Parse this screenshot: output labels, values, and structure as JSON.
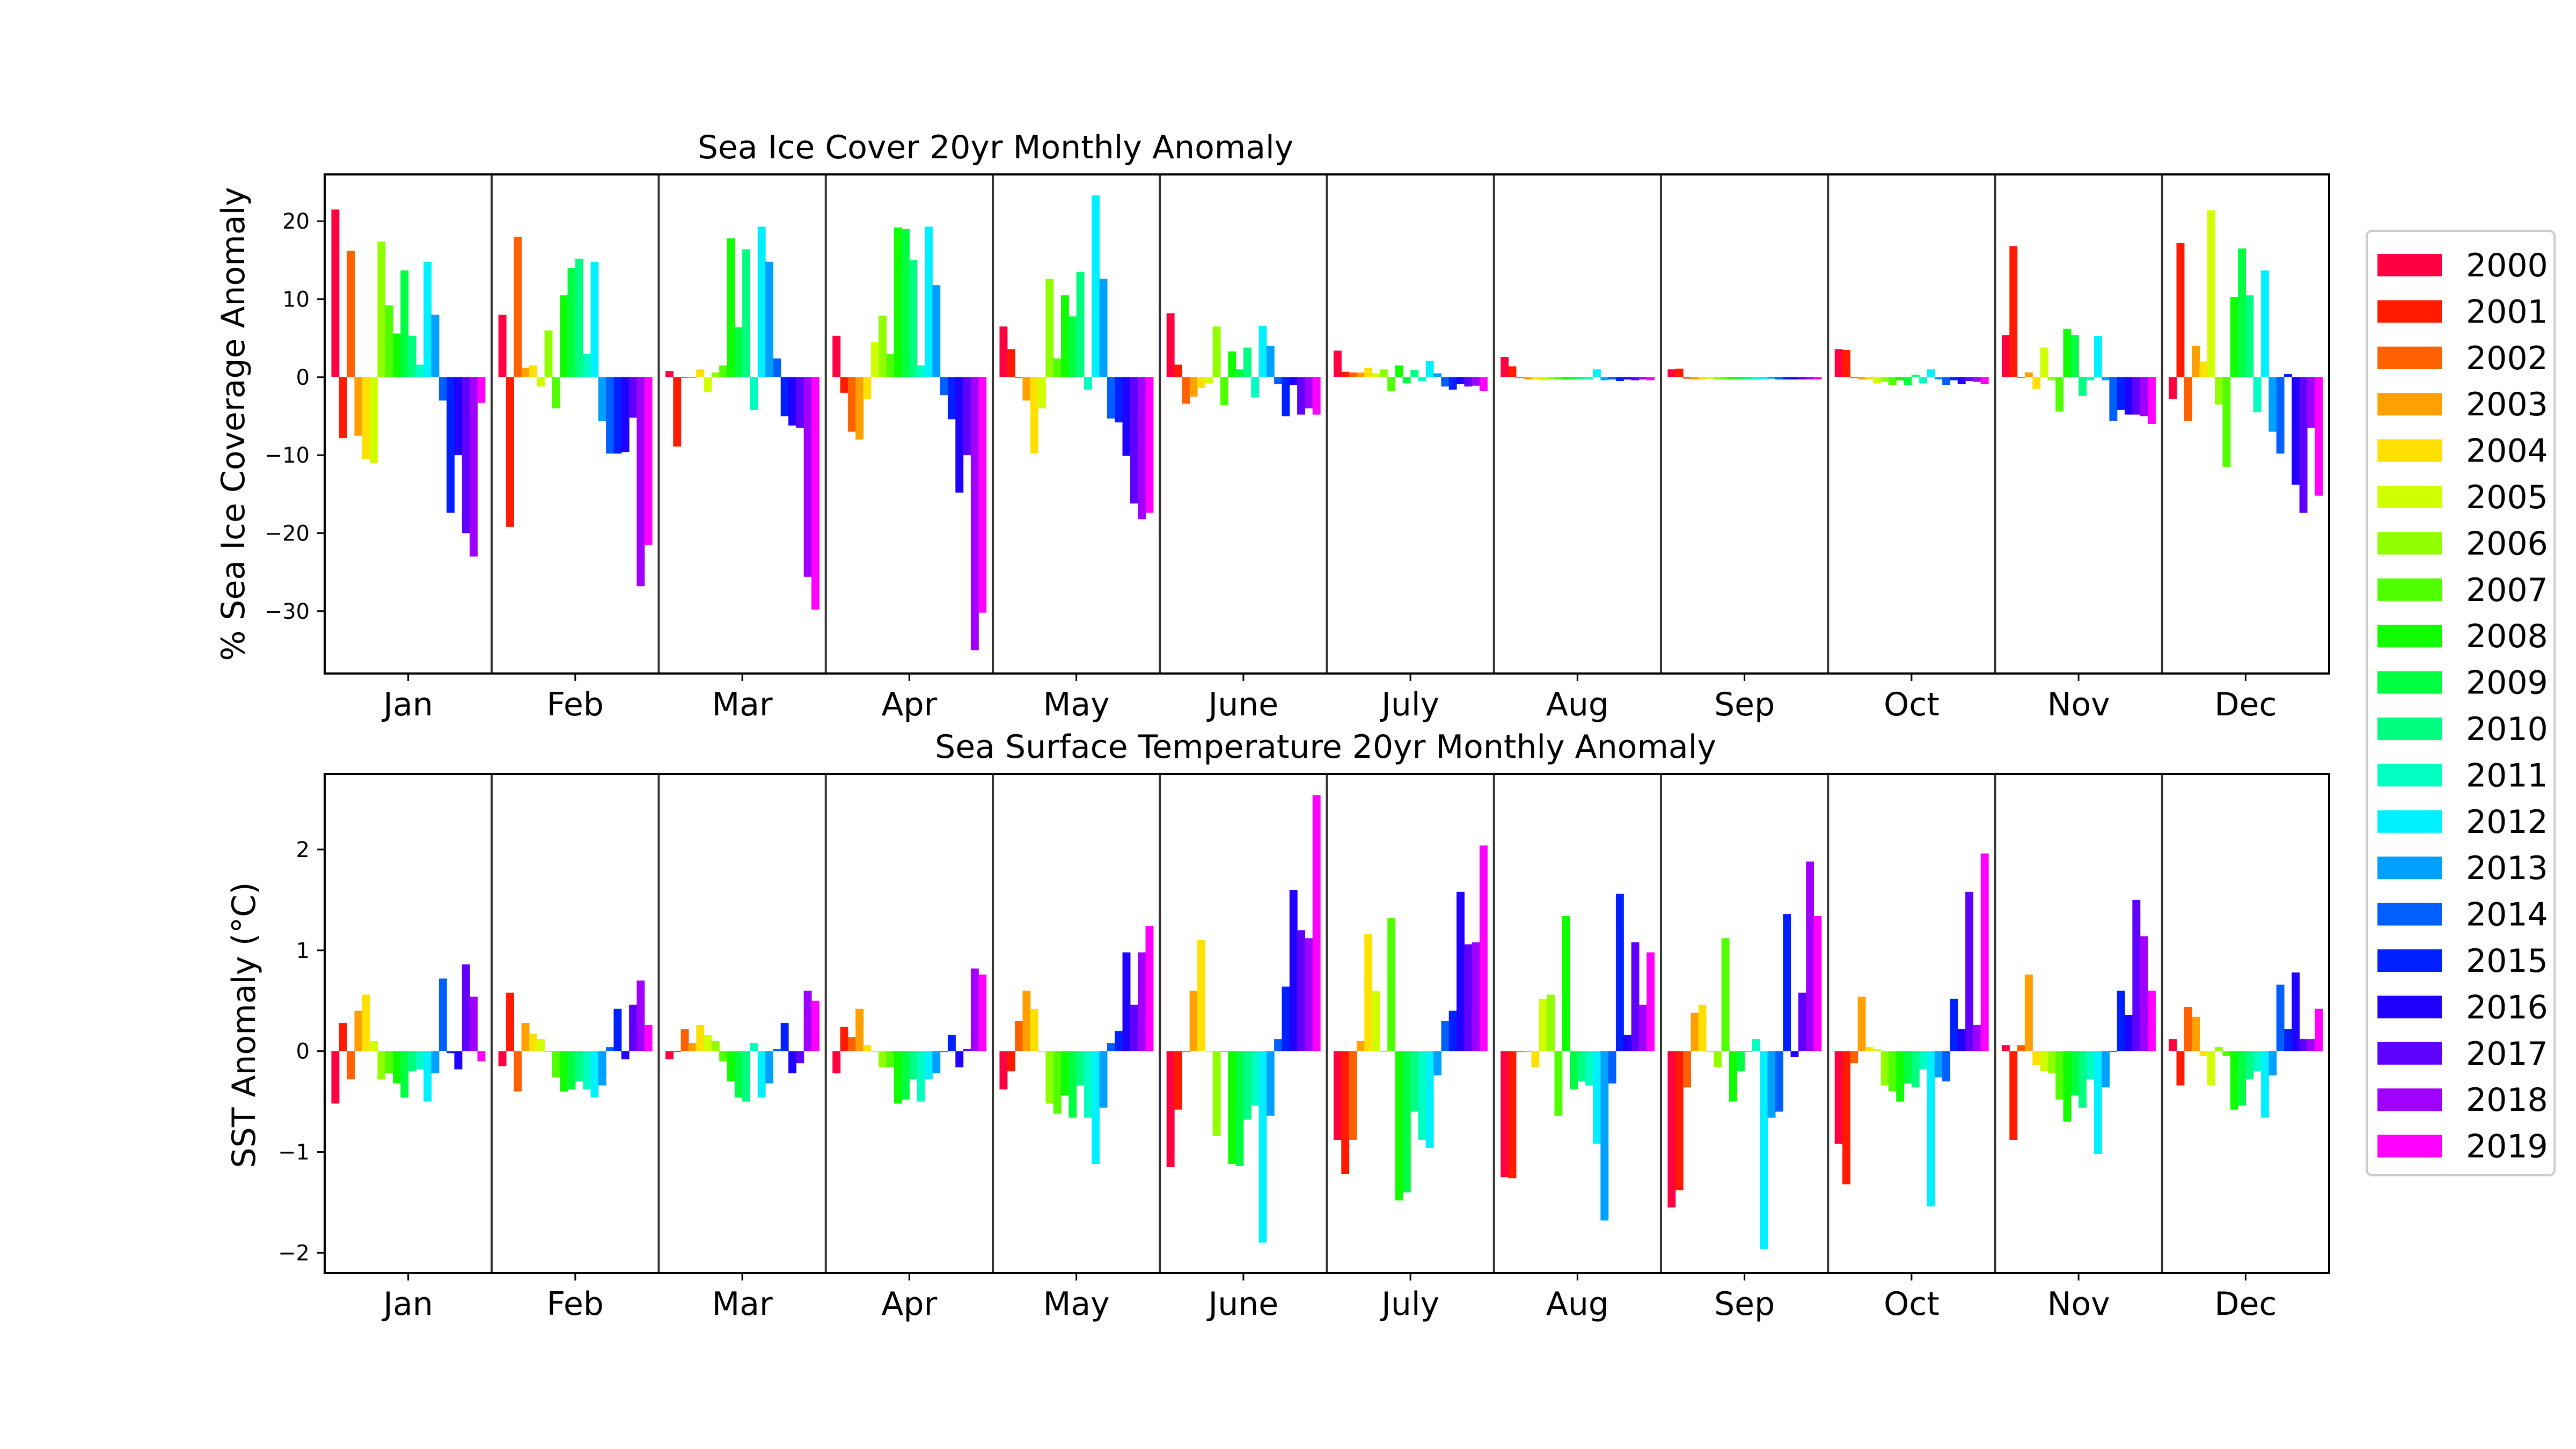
{
  "chart_data": [
    {
      "type": "bar",
      "title": "Sea Ice Cover 20yr Monthly Anomaly",
      "xlabel": "",
      "ylabel": "% Sea Ice Coverage Anomaly",
      "ylim": [
        -38,
        26
      ],
      "yticks": [
        20,
        10,
        0,
        -10,
        -20,
        -30
      ],
      "ytick_labels": [
        "20",
        "10",
        "0",
        "−10",
        "−20",
        "−30"
      ],
      "categories": [
        "Jan",
        "Feb",
        "Mar",
        "Apr",
        "May",
        "June",
        "July",
        "Aug",
        "Sep",
        "Oct",
        "Nov",
        "Dec"
      ],
      "series": [
        {
          "name": "2000",
          "color": "#ff0040",
          "values": [
            21.5,
            8.0,
            0.8,
            5.3,
            6.5,
            8.2,
            3.4,
            2.6,
            1.0,
            3.6,
            5.4,
            -2.8
          ]
        },
        {
          "name": "2001",
          "color": "#ff1a00",
          "values": [
            -7.8,
            -19.2,
            -8.9,
            -2.0,
            3.6,
            1.6,
            0.7,
            1.4,
            1.1,
            3.5,
            16.8,
            17.2
          ]
        },
        {
          "name": "2002",
          "color": "#ff6000",
          "values": [
            16.2,
            18.0,
            0.0,
            -7.0,
            0.0,
            -3.4,
            0.6,
            0.0,
            -0.2,
            0.0,
            0.0,
            -5.6
          ]
        },
        {
          "name": "2003",
          "color": "#ffa000",
          "values": [
            -7.5,
            1.2,
            0.0,
            -8.0,
            -3.0,
            -2.5,
            0.6,
            -0.3,
            -0.3,
            -0.3,
            0.6,
            4.0
          ]
        },
        {
          "name": "2004",
          "color": "#ffe000",
          "values": [
            -10.5,
            1.5,
            1.0,
            -2.8,
            -9.8,
            -1.4,
            1.2,
            -0.3,
            -0.3,
            -0.3,
            -1.5,
            2.0
          ]
        },
        {
          "name": "2005",
          "color": "#d0ff00",
          "values": [
            -11.0,
            -1.2,
            -1.9,
            4.5,
            -4.0,
            -0.8,
            0.5,
            -0.4,
            -0.2,
            -0.8,
            3.8,
            21.4
          ]
        },
        {
          "name": "2006",
          "color": "#90ff00",
          "values": [
            17.4,
            6.0,
            0.6,
            7.9,
            12.6,
            6.5,
            1.0,
            -0.3,
            -0.3,
            -0.6,
            -0.4,
            -3.5
          ]
        },
        {
          "name": "2007",
          "color": "#50ff00",
          "values": [
            9.2,
            -4.0,
            1.5,
            3.0,
            2.4,
            -3.6,
            -1.8,
            -0.3,
            -0.3,
            -1.0,
            -4.4,
            -11.5
          ]
        },
        {
          "name": "2008",
          "color": "#10ff00",
          "values": [
            5.6,
            10.5,
            17.8,
            19.2,
            10.5,
            3.3,
            1.5,
            -0.3,
            -0.3,
            -0.4,
            6.2,
            10.3
          ]
        },
        {
          "name": "2009",
          "color": "#00ff40",
          "values": [
            13.7,
            14.0,
            6.4,
            19.0,
            7.8,
            1.0,
            -0.8,
            -0.3,
            -0.3,
            -1.0,
            5.4,
            16.5
          ]
        },
        {
          "name": "2010",
          "color": "#00ff80",
          "values": [
            5.3,
            15.2,
            16.4,
            15.0,
            13.5,
            3.8,
            0.9,
            -0.3,
            -0.3,
            0.3,
            -2.4,
            10.5
          ]
        },
        {
          "name": "2011",
          "color": "#00ffc0",
          "values": [
            1.6,
            3.0,
            -4.2,
            1.5,
            -1.6,
            -2.6,
            -0.5,
            -0.3,
            -0.3,
            -0.8,
            -0.4,
            -4.5
          ]
        },
        {
          "name": "2012",
          "color": "#00f0ff",
          "values": [
            14.8,
            14.8,
            19.3,
            19.3,
            23.3,
            6.6,
            2.1,
            1.0,
            -0.3,
            1.0,
            5.3,
            13.7
          ]
        },
        {
          "name": "2013",
          "color": "#00a0ff",
          "values": [
            8.0,
            -5.6,
            14.8,
            11.8,
            12.6,
            4.0,
            0.5,
            -0.4,
            -0.2,
            -0.3,
            -0.4,
            -7.0
          ]
        },
        {
          "name": "2014",
          "color": "#0060ff",
          "values": [
            -3.0,
            -9.8,
            2.4,
            -2.3,
            -5.3,
            -0.9,
            -1.2,
            -0.3,
            -0.3,
            -1.0,
            -5.6,
            -9.8
          ]
        },
        {
          "name": "2015",
          "color": "#0020ff",
          "values": [
            -17.4,
            -9.8,
            -5.0,
            -5.4,
            -5.8,
            -5.0,
            -1.6,
            -0.5,
            -0.3,
            -0.4,
            -4.2,
            0.4
          ]
        },
        {
          "name": "2016",
          "color": "#2000ff",
          "values": [
            -10.0,
            -9.6,
            -6.2,
            -14.8,
            -10.1,
            -1.0,
            -0.9,
            -0.3,
            -0.3,
            -0.9,
            -4.8,
            -13.8
          ]
        },
        {
          "name": "2017",
          "color": "#6000ff",
          "values": [
            -20.0,
            -5.2,
            -6.5,
            -10.0,
            -16.2,
            -4.8,
            -1.2,
            -0.4,
            -0.3,
            -0.5,
            -4.8,
            -17.4
          ]
        },
        {
          "name": "2018",
          "color": "#a000ff",
          "values": [
            -23.0,
            -26.8,
            -25.6,
            -35.0,
            -18.2,
            -4.0,
            -1.1,
            -0.3,
            -0.3,
            -0.6,
            -5.0,
            -6.5
          ]
        },
        {
          "name": "2019",
          "color": "#ff00ff",
          "values": [
            -3.3,
            -21.5,
            -29.8,
            -30.2,
            -17.4,
            -4.8,
            -1.8,
            -0.4,
            -0.3,
            -0.9,
            -6.0,
            -15.2
          ]
        }
      ]
    },
    {
      "type": "bar",
      "title": "Sea Surface Temperature 20yr Monthly Anomaly",
      "xlabel": "",
      "ylabel": "SST Anomaly (°C)",
      "ylim": [
        -2.2,
        2.75
      ],
      "yticks": [
        2,
        1,
        0,
        -1,
        -2
      ],
      "ytick_labels": [
        "2",
        "1",
        "0",
        "−1",
        "−2"
      ],
      "categories": [
        "Jan",
        "Feb",
        "Mar",
        "Apr",
        "May",
        "June",
        "July",
        "Aug",
        "Sep",
        "Oct",
        "Nov",
        "Dec"
      ],
      "series": [
        {
          "name": "2000",
          "color": "#ff0040",
          "values": [
            -0.52,
            -0.15,
            -0.08,
            -0.22,
            -0.38,
            -1.15,
            -0.88,
            -1.25,
            -1.55,
            -0.92,
            0.06,
            0.12
          ]
        },
        {
          "name": "2001",
          "color": "#ff1a00",
          "values": [
            0.28,
            0.58,
            0.0,
            0.24,
            -0.2,
            -0.58,
            -1.22,
            -1.26,
            -1.38,
            -1.32,
            -0.88,
            -0.34
          ]
        },
        {
          "name": "2002",
          "color": "#ff6000",
          "values": [
            -0.28,
            -0.4,
            0.22,
            0.14,
            0.3,
            0.0,
            -0.88,
            0.0,
            -0.36,
            -0.12,
            0.06,
            0.44
          ]
        },
        {
          "name": "2003",
          "color": "#ffa000",
          "values": [
            0.4,
            0.28,
            0.08,
            0.42,
            0.6,
            0.6,
            0.1,
            0.0,
            0.38,
            0.54,
            0.76,
            0.34
          ]
        },
        {
          "name": "2004",
          "color": "#ffe000",
          "values": [
            0.56,
            0.17,
            0.26,
            0.06,
            0.42,
            1.1,
            1.16,
            -0.16,
            0.46,
            0.04,
            -0.14,
            -0.05
          ]
        },
        {
          "name": "2005",
          "color": "#d0ff00",
          "values": [
            0.1,
            0.12,
            0.16,
            0.0,
            0.0,
            0.0,
            0.6,
            0.52,
            0.0,
            0.02,
            -0.2,
            -0.34
          ]
        },
        {
          "name": "2006",
          "color": "#90ff00",
          "values": [
            -0.28,
            0.0,
            0.1,
            -0.16,
            -0.52,
            -0.84,
            0.0,
            0.56,
            -0.16,
            -0.34,
            -0.22,
            0.04
          ]
        },
        {
          "name": "2007",
          "color": "#50ff00",
          "values": [
            -0.22,
            -0.26,
            -0.1,
            -0.16,
            -0.62,
            0.0,
            1.32,
            -0.64,
            1.12,
            -0.4,
            -0.48,
            -0.05
          ]
        },
        {
          "name": "2008",
          "color": "#10ff00",
          "values": [
            -0.32,
            -0.4,
            -0.3,
            -0.52,
            -0.44,
            -1.12,
            -1.48,
            1.34,
            -0.5,
            -0.5,
            -0.7,
            -0.58
          ]
        },
        {
          "name": "2009",
          "color": "#00ff40",
          "values": [
            -0.46,
            -0.38,
            -0.46,
            -0.48,
            -0.66,
            -1.14,
            -1.4,
            -0.38,
            -0.2,
            -0.32,
            -0.44,
            -0.54
          ]
        },
        {
          "name": "2010",
          "color": "#00ff80",
          "values": [
            -0.2,
            -0.3,
            -0.5,
            -0.28,
            -0.34,
            -0.68,
            -0.6,
            -0.3,
            0.0,
            -0.36,
            -0.56,
            -0.28
          ]
        },
        {
          "name": "2011",
          "color": "#00ffc0",
          "values": [
            -0.18,
            -0.38,
            0.08,
            -0.5,
            -0.66,
            -0.54,
            -0.88,
            -0.34,
            0.12,
            -0.18,
            -0.28,
            -0.2
          ]
        },
        {
          "name": "2012",
          "color": "#00f0ff",
          "values": [
            -0.5,
            -0.46,
            -0.46,
            -0.28,
            -1.12,
            -1.9,
            -0.96,
            -0.92,
            -1.96,
            -1.54,
            -1.02,
            -0.66
          ]
        },
        {
          "name": "2013",
          "color": "#00a0ff",
          "values": [
            -0.22,
            -0.34,
            -0.32,
            -0.22,
            -0.56,
            -0.64,
            -0.24,
            -1.68,
            -0.66,
            -0.26,
            -0.36,
            -0.24
          ]
        },
        {
          "name": "2014",
          "color": "#0060ff",
          "values": [
            0.72,
            0.04,
            0.02,
            0.0,
            0.08,
            0.12,
            0.3,
            -0.32,
            -0.6,
            -0.3,
            0.0,
            0.66
          ]
        },
        {
          "name": "2015",
          "color": "#0020ff",
          "values": [
            -0.02,
            0.42,
            0.28,
            0.16,
            0.2,
            0.64,
            0.4,
            1.56,
            1.36,
            0.52,
            0.6,
            0.22
          ]
        },
        {
          "name": "2016",
          "color": "#2000ff",
          "values": [
            -0.18,
            -0.08,
            -0.22,
            -0.16,
            0.98,
            1.6,
            1.58,
            0.16,
            -0.06,
            0.22,
            0.36,
            0.78
          ]
        },
        {
          "name": "2017",
          "color": "#6000ff",
          "values": [
            0.86,
            0.46,
            -0.12,
            0.02,
            0.46,
            1.2,
            1.06,
            1.08,
            0.58,
            1.58,
            1.5,
            0.12
          ]
        },
        {
          "name": "2018",
          "color": "#a000ff",
          "values": [
            0.54,
            0.7,
            0.6,
            0.82,
            0.98,
            1.12,
            1.08,
            0.46,
            1.88,
            0.26,
            1.14,
            0.12
          ]
        },
        {
          "name": "2019",
          "color": "#ff00ff",
          "values": [
            -0.1,
            0.26,
            0.5,
            0.76,
            1.24,
            2.54,
            2.04,
            0.98,
            1.34,
            1.96,
            0.6,
            0.42
          ]
        }
      ]
    }
  ],
  "legend": {
    "placement": "right",
    "entries": [
      "2000",
      "2001",
      "2002",
      "2003",
      "2004",
      "2005",
      "2006",
      "2007",
      "2008",
      "2009",
      "2010",
      "2011",
      "2012",
      "2013",
      "2014",
      "2015",
      "2016",
      "2017",
      "2018",
      "2019"
    ]
  }
}
